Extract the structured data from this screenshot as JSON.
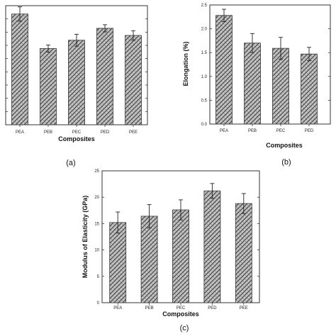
{
  "chart_data": [
    {
      "panel": "(a)",
      "type": "bar",
      "categories": [
        "PEA",
        "PEB",
        "PEC",
        "PED",
        "PEE"
      ],
      "values": [
        0.93,
        0.64,
        0.71,
        0.81,
        0.75
      ],
      "errors": [
        0.06,
        0.03,
        0.05,
        0.03,
        0.04
      ],
      "xlabel": "Composites",
      "ylabel": "",
      "ylim": [
        0,
        1
      ],
      "grid": false
    },
    {
      "panel": "(b)",
      "type": "bar",
      "categories": [
        "PEA",
        "PEB",
        "PEC",
        "PED"
      ],
      "values": [
        2.28,
        1.7,
        1.59,
        1.47
      ],
      "errors": [
        0.13,
        0.2,
        0.23,
        0.14
      ],
      "xlabel": "Composites",
      "ylabel": "Elongation (%)",
      "ylim": [
        0,
        2.5
      ],
      "yticks": [
        "0.0",
        "0.5",
        "1.0",
        "1.5",
        "2.0",
        "2.5"
      ],
      "grid": false
    },
    {
      "panel": "(c)",
      "type": "bar",
      "categories": [
        "PEA",
        "PEB",
        "PEC",
        "PED",
        "PEE"
      ],
      "values": [
        15.2,
        16.4,
        17.6,
        21.2,
        18.8
      ],
      "errors": [
        2.0,
        2.2,
        1.9,
        1.4,
        1.9
      ],
      "xlabel": "Composites",
      "ylabel": "Modulus of Elasticity (GPa)",
      "ylim": [
        0,
        25
      ],
      "yticks": [
        "0",
        "5",
        "10",
        "15",
        "20",
        "25"
      ],
      "grid": false
    }
  ],
  "colors": {
    "bar_fill": "#b8b8b8",
    "hatch": "#3a3a3a",
    "axis": "#333333"
  }
}
